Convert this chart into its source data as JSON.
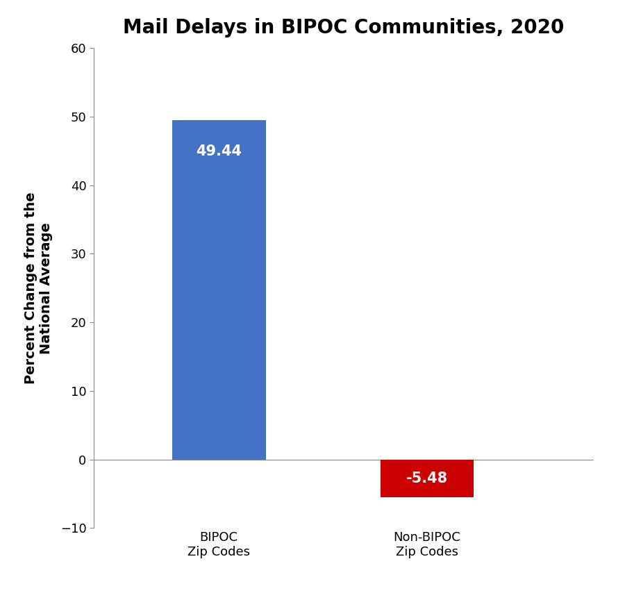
{
  "title": "Mail Delays in BIPOC Communities, 2020",
  "categories": [
    "BIPOC\nZip Codes",
    "Non-BIPOC\nZip Codes"
  ],
  "values": [
    49.44,
    -5.48
  ],
  "bar_colors": [
    "#4472C4",
    "#CC0000"
  ],
  "ylabel": "Percent Change from the\nNational Average",
  "ylim": [
    -10,
    60
  ],
  "yticks": [
    -10,
    0,
    10,
    20,
    30,
    40,
    50,
    60
  ],
  "bar_labels": [
    "49.44",
    "-5.48"
  ],
  "label_color": "#ffffff",
  "title_fontsize": 20,
  "label_fontsize": 15,
  "ylabel_fontsize": 14,
  "tick_fontsize": 13,
  "xtick_fontsize": 13,
  "background_color": "#ffffff",
  "bar_width": 0.45,
  "x_positions": [
    1,
    2
  ],
  "xlim": [
    0.4,
    2.8
  ]
}
